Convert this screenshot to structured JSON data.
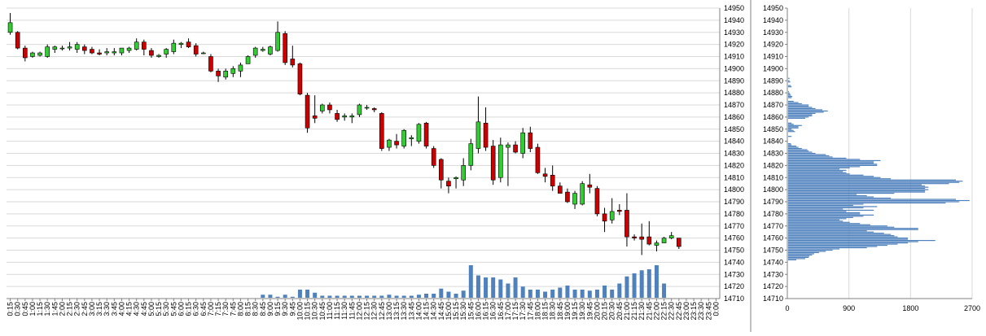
{
  "chart_data": [
    {
      "type": "candlestick",
      "title": "",
      "ylim": [
        14710,
        14950
      ],
      "y_ticks": [
        14710,
        14720,
        14730,
        14740,
        14750,
        14760,
        14770,
        14780,
        14790,
        14800,
        14810,
        14820,
        14830,
        14840,
        14850,
        14860,
        14870,
        14880,
        14890,
        14900,
        14910,
        14920,
        14930,
        14940,
        14950
      ],
      "x_tick_labels": [
        "0:15",
        "0:30",
        "0:45",
        "1:00",
        "1:15",
        "1:30",
        "1:45",
        "2:00",
        "2:15",
        "2:30",
        "2:45",
        "3:00",
        "3:15",
        "3:30",
        "3:45",
        "4:00",
        "4:15",
        "4:30",
        "4:45",
        "5:00",
        "5:15",
        "5:30",
        "5:45",
        "6:00",
        "6:15",
        "6:30",
        "6:45",
        "7:00",
        "7:15",
        "7:30",
        "7:45",
        "8:00",
        "8:15",
        "8:30",
        "8:45",
        "9:00",
        "9:15",
        "9:30",
        "9:45",
        "10:00",
        "10:15",
        "10:30",
        "10:45",
        "11:00",
        "11:15",
        "11:30",
        "11:45",
        "12:00",
        "12:15",
        "12:30",
        "12:45",
        "13:00",
        "13:15",
        "13:30",
        "13:45",
        "14:00",
        "14:15",
        "14:30",
        "14:45",
        "15:00",
        "15:15",
        "15:30",
        "15:45",
        "16:00",
        "16:15",
        "16:30",
        "16:45",
        "17:00",
        "17:15",
        "17:30",
        "17:45",
        "18:00",
        "18:15",
        "18:30",
        "18:45",
        "19:00",
        "19:15",
        "19:30",
        "19:45",
        "20:00",
        "20:15",
        "20:30",
        "20:45",
        "21:00",
        "21:15",
        "21:30",
        "21:45",
        "22:00",
        "22:15",
        "22:30",
        "22:45",
        "23:00",
        "23:15",
        "23:30",
        "23:45",
        "0:00"
      ],
      "up_color": "#32cd32",
      "down_color": "#cc0000",
      "volume_color": "#4f81bd",
      "candles": [
        {
          "t": "0:15",
          "o": 14930,
          "h": 14946,
          "l": 14928,
          "c": 14938
        },
        {
          "t": "0:30",
          "o": 14930,
          "h": 14931,
          "l": 14916,
          "c": 14917
        },
        {
          "t": "0:45",
          "o": 14917,
          "h": 14919,
          "l": 14906,
          "c": 14909
        },
        {
          "t": "1:00",
          "o": 14910,
          "h": 14914,
          "l": 14909,
          "c": 14913
        },
        {
          "t": "1:15",
          "o": 14911,
          "h": 14914,
          "l": 14910,
          "c": 14913
        },
        {
          "t": "1:30",
          "o": 14910,
          "h": 14920,
          "l": 14909,
          "c": 14918
        },
        {
          "t": "1:45",
          "o": 14916,
          "h": 14919,
          "l": 14913,
          "c": 14918
        },
        {
          "t": "2:00",
          "o": 14917,
          "h": 14919,
          "l": 14915,
          "c": 14917
        },
        {
          "t": "2:15",
          "o": 14917,
          "h": 14922,
          "l": 14915,
          "c": 14918
        },
        {
          "t": "2:30",
          "o": 14916,
          "h": 14922,
          "l": 14913,
          "c": 14920
        },
        {
          "t": "2:45",
          "o": 14918,
          "h": 14920,
          "l": 14912,
          "c": 14915
        },
        {
          "t": "3:00",
          "o": 14916,
          "h": 14918,
          "l": 14912,
          "c": 14913
        },
        {
          "t": "3:15",
          "o": 14913,
          "h": 14916,
          "l": 14911,
          "c": 14912
        },
        {
          "t": "3:30",
          "o": 14913,
          "h": 14917,
          "l": 14911,
          "c": 14914
        },
        {
          "t": "3:45",
          "o": 14913,
          "h": 14917,
          "l": 14911,
          "c": 14914
        },
        {
          "t": "4:00",
          "o": 14913,
          "h": 14917,
          "l": 14911,
          "c": 14917
        },
        {
          "t": "4:15",
          "o": 14915,
          "h": 14918,
          "l": 14913,
          "c": 14917
        },
        {
          "t": "4:30",
          "o": 14916,
          "h": 14925,
          "l": 14915,
          "c": 14922
        },
        {
          "t": "4:45",
          "o": 14922,
          "h": 14924,
          "l": 14911,
          "c": 14916
        },
        {
          "t": "5:00",
          "o": 14915,
          "h": 14917,
          "l": 14909,
          "c": 14911
        },
        {
          "t": "5:15",
          "o": 14910,
          "h": 14912,
          "l": 14909,
          "c": 14911
        },
        {
          "t": "5:30",
          "o": 14912,
          "h": 14917,
          "l": 14909,
          "c": 14916
        },
        {
          "t": "5:45",
          "o": 14914,
          "h": 14924,
          "l": 14912,
          "c": 14921
        },
        {
          "t": "6:00",
          "o": 14920,
          "h": 14922,
          "l": 14917,
          "c": 14921
        },
        {
          "t": "6:15",
          "o": 14922,
          "h": 14925,
          "l": 14917,
          "c": 14918
        },
        {
          "t": "6:30",
          "o": 14919,
          "h": 14921,
          "l": 14910,
          "c": 14912
        },
        {
          "t": "6:45",
          "o": 14913,
          "h": 14914,
          "l": 14912,
          "c": 14913
        },
        {
          "t": "7:00",
          "o": 14910,
          "h": 14912,
          "l": 14897,
          "c": 14898
        },
        {
          "t": "7:15",
          "o": 14898,
          "h": 14900,
          "l": 14889,
          "c": 14894
        },
        {
          "t": "7:30",
          "o": 14893,
          "h": 14900,
          "l": 14891,
          "c": 14898
        },
        {
          "t": "7:45",
          "o": 14896,
          "h": 14902,
          "l": 14893,
          "c": 14900
        },
        {
          "t": "8:00",
          "o": 14898,
          "h": 14905,
          "l": 14893,
          "c": 14903
        },
        {
          "t": "8:15",
          "o": 14904,
          "h": 14911,
          "l": 14904,
          "c": 14910
        },
        {
          "t": "8:30",
          "o": 14911,
          "h": 14918,
          "l": 14909,
          "c": 14917
        },
        {
          "t": "8:45",
          "o": 14915,
          "h": 14918,
          "l": 14914,
          "c": 14916
        },
        {
          "t": "9:00",
          "o": 14912,
          "h": 14919,
          "l": 14911,
          "c": 14918
        },
        {
          "t": "9:15",
          "o": 14915,
          "h": 14939,
          "l": 14914,
          "c": 14930
        },
        {
          "t": "9:30",
          "o": 14929,
          "h": 14931,
          "l": 14903,
          "c": 14905
        },
        {
          "t": "9:45",
          "o": 14908,
          "h": 14919,
          "l": 14901,
          "c": 14903
        },
        {
          "t": "10:00",
          "o": 14904,
          "h": 14905,
          "l": 14878,
          "c": 14879
        },
        {
          "t": "10:15",
          "o": 14878,
          "h": 14880,
          "l": 14847,
          "c": 14851
        },
        {
          "t": "10:30",
          "o": 14861,
          "h": 14878,
          "l": 14855,
          "c": 14859
        },
        {
          "t": "10:45",
          "o": 14865,
          "h": 14871,
          "l": 14863,
          "c": 14870
        },
        {
          "t": "11:00",
          "o": 14870,
          "h": 14872,
          "l": 14863,
          "c": 14866
        },
        {
          "t": "11:15",
          "o": 14863,
          "h": 14866,
          "l": 14856,
          "c": 14858
        },
        {
          "t": "11:30",
          "o": 14860,
          "h": 14863,
          "l": 14857,
          "c": 14861
        },
        {
          "t": "11:45",
          "o": 14860,
          "h": 14863,
          "l": 14855,
          "c": 14861
        },
        {
          "t": "12:00",
          "o": 14862,
          "h": 14871,
          "l": 14860,
          "c": 14870
        },
        {
          "t": "12:15",
          "o": 14868,
          "h": 14870,
          "l": 14866,
          "c": 14868
        },
        {
          "t": "12:30",
          "o": 14867,
          "h": 14868,
          "l": 14864,
          "c": 14866
        },
        {
          "t": "12:45",
          "o": 14863,
          "h": 14864,
          "l": 14832,
          "c": 14834
        },
        {
          "t": "13:00",
          "o": 14835,
          "h": 14842,
          "l": 14832,
          "c": 14841
        },
        {
          "t": "13:15",
          "o": 14840,
          "h": 14846,
          "l": 14834,
          "c": 14837
        },
        {
          "t": "13:30",
          "o": 14836,
          "h": 14850,
          "l": 14834,
          "c": 14849
        },
        {
          "t": "13:45",
          "o": 14842,
          "h": 14845,
          "l": 14836,
          "c": 14843
        },
        {
          "t": "14:00",
          "o": 14840,
          "h": 14855,
          "l": 14838,
          "c": 14854
        },
        {
          "t": "14:15",
          "o": 14855,
          "h": 14856,
          "l": 14834,
          "c": 14836
        },
        {
          "t": "14:30",
          "o": 14834,
          "h": 14836,
          "l": 14818,
          "c": 14820
        },
        {
          "t": "14:45",
          "o": 14825,
          "h": 14826,
          "l": 14801,
          "c": 14808
        },
        {
          "t": "15:00",
          "o": 14807,
          "h": 14810,
          "l": 14797,
          "c": 14803
        },
        {
          "t": "15:15",
          "o": 14809,
          "h": 14811,
          "l": 14801,
          "c": 14810
        },
        {
          "t": "15:30",
          "o": 14808,
          "h": 14826,
          "l": 14803,
          "c": 14820
        },
        {
          "t": "15:45",
          "o": 14820,
          "h": 14842,
          "l": 14816,
          "c": 14838
        },
        {
          "t": "16:00",
          "o": 14834,
          "h": 14877,
          "l": 14830,
          "c": 14856
        },
        {
          "t": "16:15",
          "o": 14855,
          "h": 14868,
          "l": 14832,
          "c": 14835
        },
        {
          "t": "16:30",
          "o": 14836,
          "h": 14841,
          "l": 14804,
          "c": 14808
        },
        {
          "t": "16:45",
          "o": 14810,
          "h": 14843,
          "l": 14806,
          "c": 14837
        },
        {
          "t": "17:00",
          "o": 14835,
          "h": 14839,
          "l": 14803,
          "c": 14837
        },
        {
          "t": "17:15",
          "o": 14837,
          "h": 14840,
          "l": 14830,
          "c": 14831
        },
        {
          "t": "17:30",
          "o": 14830,
          "h": 14851,
          "l": 14826,
          "c": 14847
        },
        {
          "t": "17:45",
          "o": 14847,
          "h": 14852,
          "l": 14831,
          "c": 14834
        },
        {
          "t": "18:00",
          "o": 14835,
          "h": 14838,
          "l": 14813,
          "c": 14814
        },
        {
          "t": "18:15",
          "o": 14813,
          "h": 14818,
          "l": 14806,
          "c": 14811
        },
        {
          "t": "18:30",
          "o": 14812,
          "h": 14820,
          "l": 14799,
          "c": 14803
        },
        {
          "t": "18:45",
          "o": 14803,
          "h": 14806,
          "l": 14797,
          "c": 14797
        },
        {
          "t": "19:00",
          "o": 14798,
          "h": 14801,
          "l": 14789,
          "c": 14790
        },
        {
          "t": "19:15",
          "o": 14788,
          "h": 14799,
          "l": 14784,
          "c": 14797
        },
        {
          "t": "19:30",
          "o": 14788,
          "h": 14807,
          "l": 14787,
          "c": 14805
        },
        {
          "t": "19:45",
          "o": 14804,
          "h": 14813,
          "l": 14797,
          "c": 14802
        },
        {
          "t": "20:00",
          "o": 14801,
          "h": 14803,
          "l": 14778,
          "c": 14780
        },
        {
          "t": "20:15",
          "o": 14780,
          "h": 14785,
          "l": 14765,
          "c": 14774
        },
        {
          "t": "20:30",
          "o": 14775,
          "h": 14793,
          "l": 14772,
          "c": 14782
        },
        {
          "t": "20:45",
          "o": 14783,
          "h": 14788,
          "l": 14779,
          "c": 14782
        },
        {
          "t": "21:00",
          "o": 14783,
          "h": 14797,
          "l": 14753,
          "c": 14761
        },
        {
          "t": "21:15",
          "o": 14761,
          "h": 14763,
          "l": 14758,
          "c": 14760
        },
        {
          "t": "21:30",
          "o": 14761,
          "h": 14772,
          "l": 14746,
          "c": 14759
        },
        {
          "t": "21:45",
          "o": 14761,
          "h": 14774,
          "l": 14754,
          "c": 14755
        },
        {
          "t": "22:00",
          "o": 14754,
          "h": 14758,
          "l": 14749,
          "c": 14756
        },
        {
          "t": "22:15",
          "o": 14756,
          "h": 14761,
          "l": 14756,
          "c": 14760
        },
        {
          "t": "22:30",
          "o": 14760,
          "h": 14765,
          "l": 14759,
          "c": 14762
        },
        {
          "t": "22:45",
          "o": 14760,
          "h": 14760,
          "l": 14751,
          "c": 14753
        }
      ],
      "volume_slots": [
        "8:45",
        "9:00",
        "9:15",
        "9:30",
        "9:45",
        "10:00",
        "10:15",
        "10:30",
        "10:45",
        "11:00",
        "11:15",
        "11:30",
        "11:45",
        "12:00",
        "12:15",
        "12:30",
        "12:45",
        "13:00",
        "13:15",
        "13:30",
        "13:45",
        "14:00",
        "14:15",
        "14:30",
        "14:45",
        "15:00",
        "15:15",
        "15:30",
        "15:45",
        "16:00",
        "16:15",
        "16:30",
        "16:45",
        "17:00",
        "17:15",
        "17:30",
        "17:45",
        "18:00",
        "18:15",
        "18:30",
        "18:45",
        "19:00",
        "19:15",
        "19:30",
        "19:45",
        "20:00",
        "20:15",
        "20:30",
        "20:45",
        "21:00",
        "21:15",
        "21:30",
        "21:45",
        "22:00",
        "22:15"
      ],
      "volume_values": [
        3,
        3,
        1,
        3,
        1,
        8,
        8,
        5,
        2,
        2,
        2,
        2,
        2,
        2,
        2,
        2,
        2,
        3,
        2,
        2,
        2,
        3,
        4,
        4,
        9,
        6,
        4,
        7,
        32,
        22,
        20,
        20,
        18,
        14,
        20,
        11,
        8,
        8,
        6,
        8,
        10,
        12,
        8,
        8,
        7,
        8,
        12,
        8,
        14,
        21,
        24,
        27,
        28,
        32,
        14
      ]
    },
    {
      "type": "bar",
      "orientation": "horizontal",
      "ylim": [
        14710,
        14950
      ],
      "xlim": [
        0,
        2700
      ],
      "x_ticks": [
        0,
        900,
        1800,
        2700
      ],
      "y_ticks": [
        14710,
        14720,
        14730,
        14740,
        14750,
        14760,
        14770,
        14780,
        14790,
        14800,
        14810,
        14820,
        14830,
        14840,
        14850,
        14860,
        14870,
        14880,
        14890,
        14900,
        14910,
        14920,
        14930,
        14940,
        14950
      ],
      "bar_color": "#4f81bd",
      "profile_prices_start": 14742,
      "profile_prices_step": 1,
      "profile_values": [
        120,
        250,
        300,
        310,
        350,
        380,
        450,
        550,
        650,
        750,
        1150,
        1300,
        1450,
        1600,
        1750,
        1900,
        2150,
        1750,
        1750,
        1600,
        1550,
        1500,
        1400,
        1250,
        1150,
        1900,
        1900,
        1550,
        1450,
        1200,
        1050,
        900,
        800,
        750,
        850,
        950,
        1100,
        1250,
        1050,
        1050,
        850,
        1250,
        800,
        1100,
        1300,
        950,
        1100,
        2300,
        2500,
        2650,
        2450,
        1500,
        1250,
        1150,
        1000,
        1550,
        2000,
        2000,
        2050,
        2000,
        2050,
        2000,
        1950,
        2350,
        2500,
        2550,
        2450,
        1500,
        1350,
        1250,
        1100,
        900,
        850,
        800,
        850,
        750,
        900,
        1050,
        1300,
        1300,
        1250,
        1250,
        1350,
        1050,
        850,
        650,
        600,
        550,
        400,
        350,
        300,
        280,
        200,
        150,
        120,
        50,
        40,
        0,
        0,
        0,
        0,
        0,
        50,
        0,
        0,
        0,
        100,
        80,
        50,
        150,
        150,
        200,
        80,
        50,
        0,
        0,
        0,
        250,
        300,
        350,
        350,
        400,
        520,
        580,
        500,
        400,
        350,
        300,
        300,
        200,
        150,
        80,
        0,
        0,
        50,
        60,
        40,
        30,
        20,
        10,
        0,
        0,
        0,
        50,
        40,
        0,
        0,
        30,
        20,
        0,
        20,
        0,
        0,
        0,
        0,
        0,
        0,
        0,
        0,
        0,
        0,
        0,
        0,
        0,
        0,
        0,
        0,
        0,
        0,
        0,
        0,
        0,
        0,
        0,
        0,
        0,
        0,
        0,
        0,
        0,
        0,
        0,
        0,
        0,
        0,
        0,
        0,
        0,
        0,
        0,
        0,
        0,
        0,
        0,
        0,
        0,
        0,
        0,
        0,
        0,
        0,
        0,
        0,
        0
      ]
    }
  ]
}
